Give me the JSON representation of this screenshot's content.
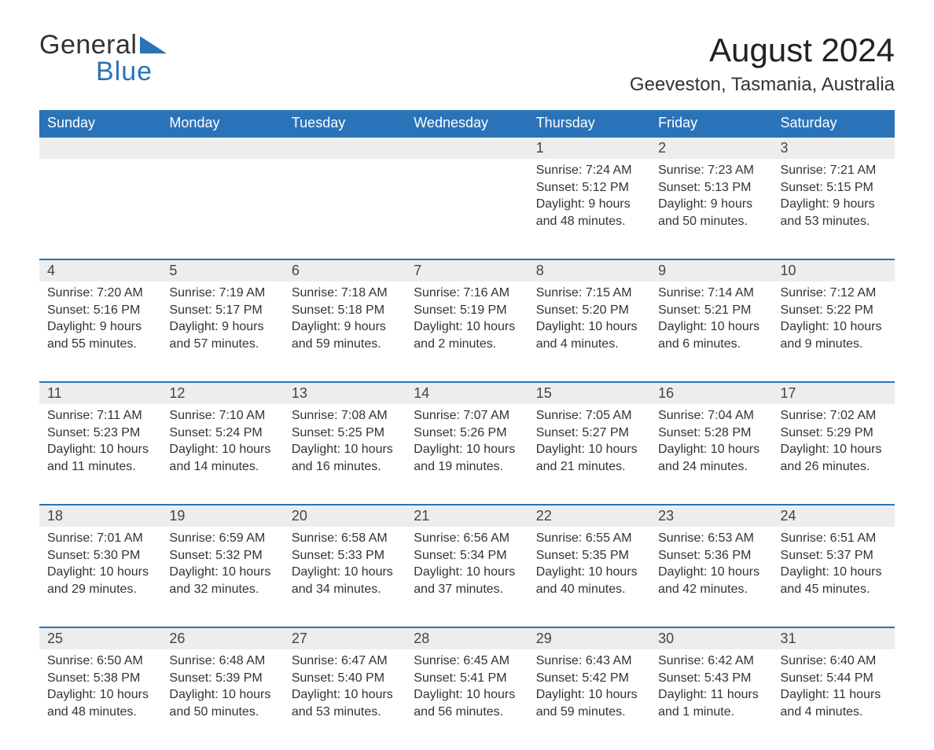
{
  "colors": {
    "brand_blue": "#2a73b8",
    "header_bg": "#2a73b8",
    "header_fg": "#ffffff",
    "daynum_bg": "#ededed",
    "daynum_border": "#2a73b8",
    "text": "#333333",
    "page_bg": "#ffffff"
  },
  "typography": {
    "month_title_fontsize": 42,
    "location_fontsize": 24,
    "day_header_fontsize": 18,
    "daynum_fontsize": 18,
    "body_fontsize": 16,
    "logo_fontsize": 34
  },
  "logo": {
    "line1": "General",
    "line2": "Blue"
  },
  "header": {
    "month_title": "August 2024",
    "location": "Geeveston, Tasmania, Australia"
  },
  "calendar": {
    "type": "table",
    "columns": [
      "Sunday",
      "Monday",
      "Tuesday",
      "Wednesday",
      "Thursday",
      "Friday",
      "Saturday"
    ],
    "weeks": [
      [
        null,
        null,
        null,
        null,
        {
          "day": "1",
          "sunrise": "Sunrise: 7:24 AM",
          "sunset": "Sunset: 5:12 PM",
          "daylight": "Daylight: 9 hours and 48 minutes."
        },
        {
          "day": "2",
          "sunrise": "Sunrise: 7:23 AM",
          "sunset": "Sunset: 5:13 PM",
          "daylight": "Daylight: 9 hours and 50 minutes."
        },
        {
          "day": "3",
          "sunrise": "Sunrise: 7:21 AM",
          "sunset": "Sunset: 5:15 PM",
          "daylight": "Daylight: 9 hours and 53 minutes."
        }
      ],
      [
        {
          "day": "4",
          "sunrise": "Sunrise: 7:20 AM",
          "sunset": "Sunset: 5:16 PM",
          "daylight": "Daylight: 9 hours and 55 minutes."
        },
        {
          "day": "5",
          "sunrise": "Sunrise: 7:19 AM",
          "sunset": "Sunset: 5:17 PM",
          "daylight": "Daylight: 9 hours and 57 minutes."
        },
        {
          "day": "6",
          "sunrise": "Sunrise: 7:18 AM",
          "sunset": "Sunset: 5:18 PM",
          "daylight": "Daylight: 9 hours and 59 minutes."
        },
        {
          "day": "7",
          "sunrise": "Sunrise: 7:16 AM",
          "sunset": "Sunset: 5:19 PM",
          "daylight": "Daylight: 10 hours and 2 minutes."
        },
        {
          "day": "8",
          "sunrise": "Sunrise: 7:15 AM",
          "sunset": "Sunset: 5:20 PM",
          "daylight": "Daylight: 10 hours and 4 minutes."
        },
        {
          "day": "9",
          "sunrise": "Sunrise: 7:14 AM",
          "sunset": "Sunset: 5:21 PM",
          "daylight": "Daylight: 10 hours and 6 minutes."
        },
        {
          "day": "10",
          "sunrise": "Sunrise: 7:12 AM",
          "sunset": "Sunset: 5:22 PM",
          "daylight": "Daylight: 10 hours and 9 minutes."
        }
      ],
      [
        {
          "day": "11",
          "sunrise": "Sunrise: 7:11 AM",
          "sunset": "Sunset: 5:23 PM",
          "daylight": "Daylight: 10 hours and 11 minutes."
        },
        {
          "day": "12",
          "sunrise": "Sunrise: 7:10 AM",
          "sunset": "Sunset: 5:24 PM",
          "daylight": "Daylight: 10 hours and 14 minutes."
        },
        {
          "day": "13",
          "sunrise": "Sunrise: 7:08 AM",
          "sunset": "Sunset: 5:25 PM",
          "daylight": "Daylight: 10 hours and 16 minutes."
        },
        {
          "day": "14",
          "sunrise": "Sunrise: 7:07 AM",
          "sunset": "Sunset: 5:26 PM",
          "daylight": "Daylight: 10 hours and 19 minutes."
        },
        {
          "day": "15",
          "sunrise": "Sunrise: 7:05 AM",
          "sunset": "Sunset: 5:27 PM",
          "daylight": "Daylight: 10 hours and 21 minutes."
        },
        {
          "day": "16",
          "sunrise": "Sunrise: 7:04 AM",
          "sunset": "Sunset: 5:28 PM",
          "daylight": "Daylight: 10 hours and 24 minutes."
        },
        {
          "day": "17",
          "sunrise": "Sunrise: 7:02 AM",
          "sunset": "Sunset: 5:29 PM",
          "daylight": "Daylight: 10 hours and 26 minutes."
        }
      ],
      [
        {
          "day": "18",
          "sunrise": "Sunrise: 7:01 AM",
          "sunset": "Sunset: 5:30 PM",
          "daylight": "Daylight: 10 hours and 29 minutes."
        },
        {
          "day": "19",
          "sunrise": "Sunrise: 6:59 AM",
          "sunset": "Sunset: 5:32 PM",
          "daylight": "Daylight: 10 hours and 32 minutes."
        },
        {
          "day": "20",
          "sunrise": "Sunrise: 6:58 AM",
          "sunset": "Sunset: 5:33 PM",
          "daylight": "Daylight: 10 hours and 34 minutes."
        },
        {
          "day": "21",
          "sunrise": "Sunrise: 6:56 AM",
          "sunset": "Sunset: 5:34 PM",
          "daylight": "Daylight: 10 hours and 37 minutes."
        },
        {
          "day": "22",
          "sunrise": "Sunrise: 6:55 AM",
          "sunset": "Sunset: 5:35 PM",
          "daylight": "Daylight: 10 hours and 40 minutes."
        },
        {
          "day": "23",
          "sunrise": "Sunrise: 6:53 AM",
          "sunset": "Sunset: 5:36 PM",
          "daylight": "Daylight: 10 hours and 42 minutes."
        },
        {
          "day": "24",
          "sunrise": "Sunrise: 6:51 AM",
          "sunset": "Sunset: 5:37 PM",
          "daylight": "Daylight: 10 hours and 45 minutes."
        }
      ],
      [
        {
          "day": "25",
          "sunrise": "Sunrise: 6:50 AM",
          "sunset": "Sunset: 5:38 PM",
          "daylight": "Daylight: 10 hours and 48 minutes."
        },
        {
          "day": "26",
          "sunrise": "Sunrise: 6:48 AM",
          "sunset": "Sunset: 5:39 PM",
          "daylight": "Daylight: 10 hours and 50 minutes."
        },
        {
          "day": "27",
          "sunrise": "Sunrise: 6:47 AM",
          "sunset": "Sunset: 5:40 PM",
          "daylight": "Daylight: 10 hours and 53 minutes."
        },
        {
          "day": "28",
          "sunrise": "Sunrise: 6:45 AM",
          "sunset": "Sunset: 5:41 PM",
          "daylight": "Daylight: 10 hours and 56 minutes."
        },
        {
          "day": "29",
          "sunrise": "Sunrise: 6:43 AM",
          "sunset": "Sunset: 5:42 PM",
          "daylight": "Daylight: 10 hours and 59 minutes."
        },
        {
          "day": "30",
          "sunrise": "Sunrise: 6:42 AM",
          "sunset": "Sunset: 5:43 PM",
          "daylight": "Daylight: 11 hours and 1 minute."
        },
        {
          "day": "31",
          "sunrise": "Sunrise: 6:40 AM",
          "sunset": "Sunset: 5:44 PM",
          "daylight": "Daylight: 11 hours and 4 minutes."
        }
      ]
    ]
  }
}
